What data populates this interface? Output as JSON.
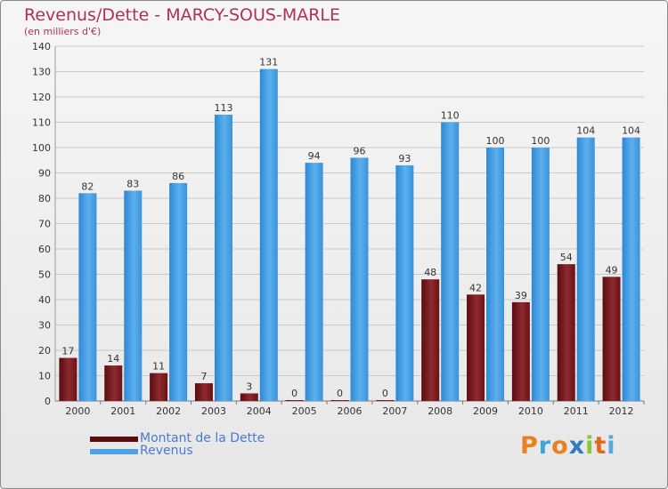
{
  "title": "Revenus/Dette - MARCY-SOUS-MARLE",
  "subtitle": "(en milliers d'€)",
  "brand": [
    "P",
    "r",
    "o",
    "x",
    "i",
    "t",
    "i"
  ],
  "colors": {
    "dette": "#7a1a1e",
    "revenus": "#4aa3e8",
    "title": "#b0305a",
    "legend_text": "#4a7ad2"
  },
  "legend": [
    {
      "label": "Montant de la Dette",
      "color": "#5a0c10"
    },
    {
      "label": "Revenus",
      "color": "#4aa3e8"
    }
  ],
  "chart_data": {
    "type": "bar",
    "title": "Revenus/Dette - MARCY-SOUS-MARLE",
    "ylabel": "(en milliers d'€)",
    "xlabel": "",
    "categories": [
      "2000",
      "2001",
      "2002",
      "2003",
      "2004",
      "2005",
      "2006",
      "2007",
      "2008",
      "2009",
      "2010",
      "2011",
      "2012"
    ],
    "series": [
      {
        "name": "Montant de la Dette",
        "values": [
          17,
          14,
          11,
          7,
          3,
          0,
          0,
          0,
          48,
          42,
          39,
          54,
          49
        ]
      },
      {
        "name": "Revenus",
        "values": [
          82,
          83,
          86,
          113,
          131,
          94,
          96,
          93,
          110,
          100,
          100,
          104,
          104
        ]
      }
    ],
    "ylim": [
      0,
      140
    ],
    "yticks": [
      0,
      10,
      20,
      30,
      40,
      50,
      60,
      70,
      80,
      90,
      100,
      110,
      120,
      130,
      140
    ],
    "grid": true,
    "legend_position": "bottom-left"
  }
}
